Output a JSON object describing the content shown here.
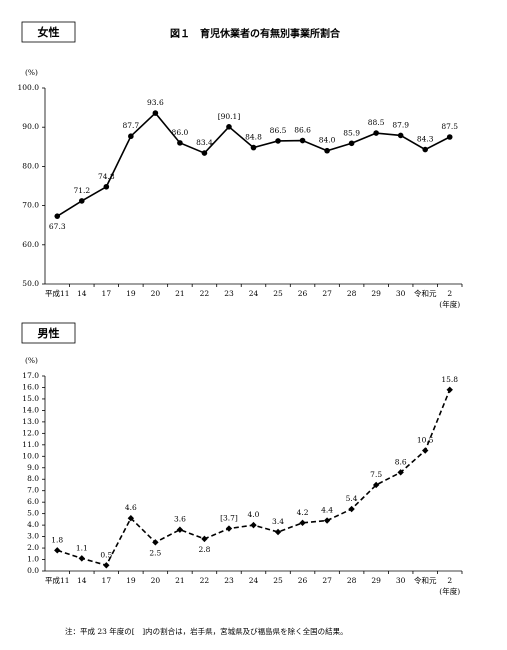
{
  "title": "図１　育児休業者の有無別事業所割合",
  "note": "注：平成 23 年度の[　]内の割合は，岩手県，宮城県及び福島県を除く全国の結果。",
  "chart_data": [
    {
      "type": "line",
      "title": "女性",
      "y_unit": "(%)",
      "x_unit": "(年度)",
      "categories": [
        "平成11",
        "14",
        "17",
        "19",
        "20",
        "21",
        "22",
        "23",
        "24",
        "25",
        "26",
        "27",
        "28",
        "29",
        "30",
        "令和元",
        "2"
      ],
      "series": [
        {
          "color": "#000000",
          "dash": false,
          "marker": "circle",
          "values": [
            67.3,
            71.2,
            74.8,
            87.7,
            93.6,
            86.0,
            83.4,
            90.1,
            84.8,
            86.5,
            86.6,
            84.0,
            85.9,
            88.5,
            87.9,
            84.3,
            87.5
          ],
          "value_labels": [
            "67.3",
            "71.2",
            "74.8",
            "87.7",
            "93.6",
            "86.0",
            "83.4",
            "[90.1]",
            "84.8",
            "86.5",
            "86.6",
            "84.0",
            "85.9",
            "88.5",
            "87.9",
            "84.3",
            "87.5"
          ]
        }
      ],
      "ylim": [
        50,
        100
      ],
      "yticks": [
        {
          "value": 50,
          "label": "50.0"
        },
        {
          "value": 60,
          "label": "60.0"
        },
        {
          "value": 70,
          "label": "70.0"
        },
        {
          "value": 80,
          "label": "80.0"
        },
        {
          "value": 90,
          "label": "90.0"
        },
        {
          "value": 100,
          "label": "100.0"
        }
      ]
    },
    {
      "type": "line",
      "title": "男性",
      "y_unit": "(%)",
      "x_unit": "(年度)",
      "categories": [
        "平成11",
        "14",
        "17",
        "19",
        "20",
        "21",
        "22",
        "23",
        "24",
        "25",
        "26",
        "27",
        "28",
        "29",
        "30",
        "令和元",
        "2"
      ],
      "series": [
        {
          "color": "#000000",
          "dash": true,
          "marker": "diamond",
          "values": [
            1.8,
            1.1,
            0.5,
            4.6,
            2.5,
            3.6,
            2.8,
            3.7,
            4.0,
            3.4,
            4.2,
            4.4,
            5.4,
            7.5,
            8.6,
            10.5,
            15.8
          ],
          "value_labels": [
            "1.8",
            "1.1",
            "0.5",
            "4.6",
            "2.5",
            "3.6",
            "2.8",
            "[3.7]",
            "4.0",
            "3.4",
            "4.2",
            "4.4",
            "5.4",
            "7.5",
            "8.6",
            "10.5",
            "15.8"
          ]
        }
      ],
      "ylim": [
        0,
        17
      ],
      "yticks": [
        {
          "value": 0,
          "label": "0.0"
        },
        {
          "value": 1,
          "label": "1.0"
        },
        {
          "value": 2,
          "label": "2.0"
        },
        {
          "value": 3,
          "label": "3.0"
        },
        {
          "value": 4,
          "label": "4.0"
        },
        {
          "value": 5,
          "label": "5.0"
        },
        {
          "value": 6,
          "label": "6.0"
        },
        {
          "value": 7,
          "label": "7.0"
        },
        {
          "value": 8,
          "label": "8.0"
        },
        {
          "value": 9,
          "label": "9.0"
        },
        {
          "value": 10,
          "label": "10.0"
        },
        {
          "value": 11,
          "label": "11.0"
        },
        {
          "value": 12,
          "label": "12.0"
        },
        {
          "value": 13,
          "label": "13.0"
        },
        {
          "value": 14,
          "label": "14.0"
        },
        {
          "value": 15,
          "label": "15.0"
        },
        {
          "value": 16,
          "label": "16.0"
        },
        {
          "value": 17,
          "label": "17.0"
        }
      ]
    }
  ]
}
